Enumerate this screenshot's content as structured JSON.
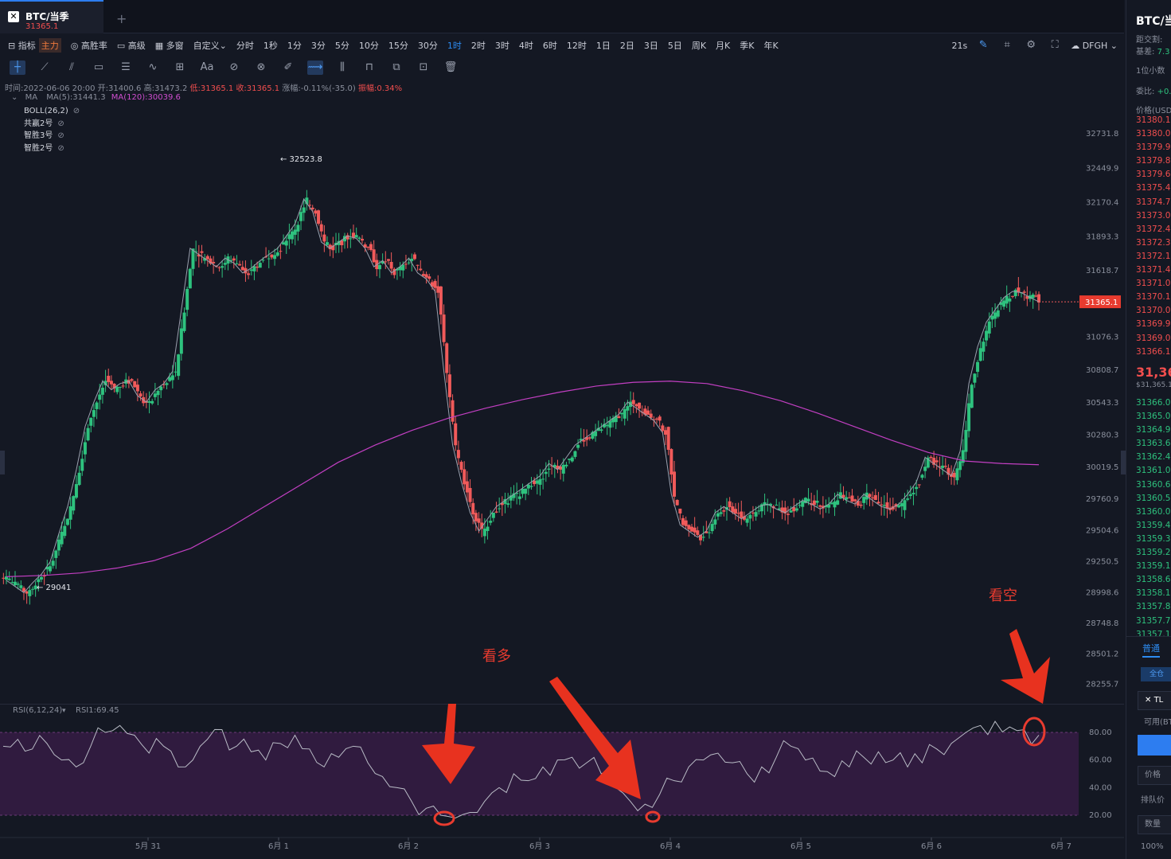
{
  "tab": {
    "title": "BTC/当季",
    "price": "31365.1",
    "add": "+"
  },
  "toolbar1": {
    "items": [
      "指标",
      "高胜率",
      "高级",
      "多窗",
      "自定义",
      "分时",
      "1秒",
      "1分",
      "3分",
      "5分",
      "10分",
      "15分",
      "30分",
      "1时",
      "2时",
      "3时",
      "4时",
      "6时",
      "12时",
      "1日",
      "2日",
      "3日",
      "5日",
      "周K",
      "月K",
      "季K",
      "年K"
    ],
    "main_tag": "主力",
    "active": "1时",
    "countdown": "21s",
    "theme": "DFGH"
  },
  "infoline": {
    "time": "时间:2022-06-06 20:00",
    "open": "开:31400.6",
    "high": "高:31473.2",
    "low": "低:31365.1",
    "close": "收:31365.1",
    "change": "涨幅:-0.11%(-35.0)",
    "amplitude": "振幅:0.34%"
  },
  "maline": {
    "label": "MA",
    "ma5": "MA(5):31441.3",
    "ma120": "MA(120):30039.6"
  },
  "indicators": [
    "BOLL(26,2)",
    "共赢2号",
    "智胜3号",
    "智胜2号"
  ],
  "price_axis": [
    "32731.8",
    "32449.9",
    "32170.4",
    "31893.3",
    "31618.7",
    "31076.3",
    "30808.7",
    "30543.3",
    "30280.3",
    "30019.5",
    "29760.9",
    "29504.6",
    "29250.5",
    "28998.6",
    "28748.8",
    "28501.2",
    "28255.7"
  ],
  "current_price_tag": "31365.1",
  "high_label": "32523.8",
  "low_label": "29041",
  "rsi": {
    "label": "RSI(6,12,24)",
    "value": "RSI1:69.45",
    "axis": [
      "80.00",
      "60.00",
      "40.00",
      "20.00"
    ]
  },
  "dates": [
    "5月 31",
    "6月 1",
    "6月 2",
    "6月 3",
    "6月 4",
    "6月 5",
    "6月 6",
    "6月 7"
  ],
  "annotations": {
    "bull": "看多",
    "bear": "看空"
  },
  "right_panel": {
    "title": "BTC/当",
    "delivery": "距交割:",
    "basis": "基差:",
    "basis_value": "7.3",
    "decimal": "1位小数",
    "ratio": "委比:",
    "ratio_value": "+0.",
    "price_header": "价格(USD",
    "asks": [
      "31380.1",
      "31380.0",
      "31379.9",
      "31379.8",
      "31379.6",
      "31375.4",
      "31374.7",
      "31373.0",
      "31372.4",
      "31372.3",
      "31372.1",
      "31371.4",
      "31371.0",
      "31370.1",
      "31370.0",
      "31369.9",
      "31369.0",
      "31366.1"
    ],
    "mid": "31,36",
    "mid_sub": "$31,365.1",
    "bids": [
      "31366.0",
      "31365.0",
      "31364.9",
      "31363.6",
      "31362.4",
      "31361.0",
      "31360.6",
      "31360.5",
      "31360.0",
      "31359.4",
      "31359.3",
      "31359.2",
      "31359.1",
      "31358.6",
      "31358.1",
      "31357.8",
      "31357.7",
      "31357.1"
    ],
    "tab": "普通",
    "full": "全仓",
    "symbol": "TL",
    "avail": "可用(BT",
    "price_label": "价格",
    "queue": "排队价",
    "qty": "数量",
    "pct": "100%"
  },
  "chart_data": {
    "type": "candlestick",
    "title": "BTC/当季 1时",
    "y_range": [
      28200,
      32900
    ],
    "x_labels": [
      "5月 31",
      "6月 1",
      "6月 2",
      "6月 3",
      "6月 4",
      "6月 5",
      "6月 6",
      "6月 7"
    ],
    "close_path": [
      29100,
      29050,
      29000,
      29080,
      29150,
      29250,
      29480,
      29700,
      30000,
      30350,
      30550,
      30720,
      30650,
      30700,
      30720,
      30600,
      30550,
      30650,
      30700,
      30800,
      31300,
      31800,
      31750,
      31700,
      31650,
      31720,
      31680,
      31600,
      31640,
      31700,
      31750,
      31800,
      31900,
      32000,
      32200,
      32100,
      31850,
      31800,
      31850,
      31900,
      31880,
      31800,
      31650,
      31700,
      31600,
      31650,
      31720,
      31600,
      31550,
      31450,
      30800,
      30200,
      29900,
      29650,
      29500,
      29600,
      29700,
      29750,
      29800,
      29850,
      29900,
      29950,
      30050,
      30000,
      30100,
      30200,
      30250,
      30300,
      30350,
      30400,
      30450,
      30550,
      30500,
      30450,
      30400,
      30300,
      29800,
      29550,
      29500,
      29450,
      29500,
      29650,
      29700,
      29650,
      29600,
      29650,
      29700,
      29720,
      29680,
      29650,
      29700,
      29750,
      29720,
      29680,
      29720,
      29800,
      29750,
      29720,
      29800,
      29750,
      29700,
      29680,
      29720,
      29800,
      29900,
      30100,
      30050,
      30000,
      29950,
      30150,
      30700,
      31000,
      31200,
      31300,
      31400,
      31450,
      31440,
      31400,
      31365
    ],
    "ma120": [
      29130,
      29140,
      29160,
      29200,
      29260,
      29360,
      29520,
      29700,
      29880,
      30060,
      30200,
      30320,
      30420,
      30500,
      30570,
      30630,
      30680,
      30710,
      30720,
      30700,
      30640,
      30560,
      30460,
      30350,
      30240,
      30140,
      30070,
      30050,
      30040
    ],
    "rsi": [
      70,
      75,
      68,
      72,
      60,
      55,
      70,
      80,
      85,
      78,
      65,
      70,
      55,
      60,
      75,
      82,
      70,
      66,
      60,
      72,
      78,
      68,
      55,
      62,
      70,
      58,
      48,
      40,
      30,
      25,
      20,
      18,
      22,
      30,
      40,
      50,
      45,
      55,
      60,
      62,
      58,
      50,
      40,
      30,
      28,
      35,
      45,
      55,
      60,
      65,
      58,
      50,
      55,
      62,
      70,
      60,
      52,
      48,
      55,
      62,
      66,
      60,
      55,
      58,
      68,
      72,
      80,
      85,
      88,
      84,
      82,
      78
    ]
  }
}
